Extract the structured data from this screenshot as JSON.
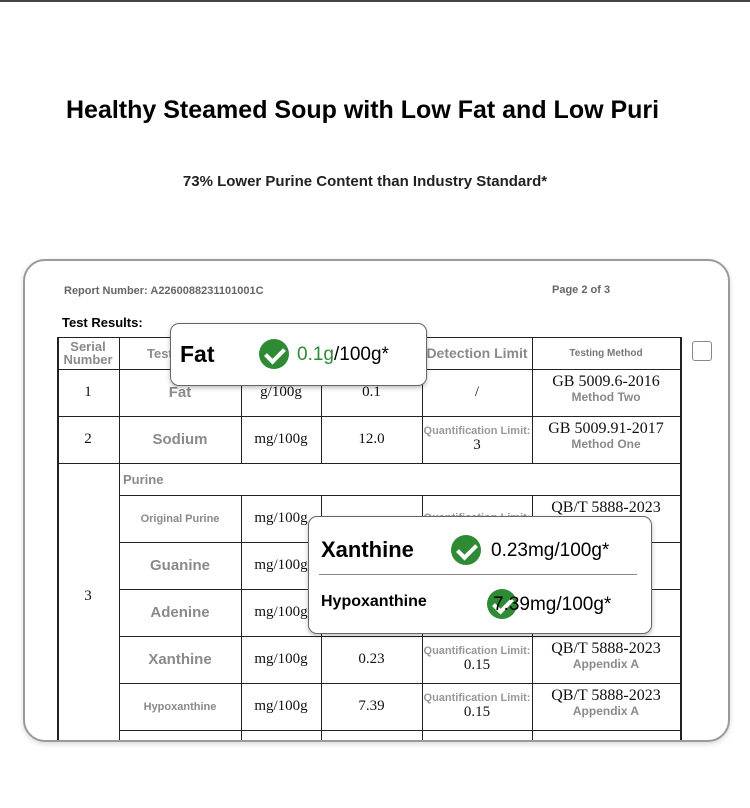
{
  "header": {
    "title": "Healthy Steamed Soup with Low Fat and Low Puri",
    "subtitle": "73% Lower Purine Content than Industry Standard*"
  },
  "report": {
    "number": "Report Number: A2260088231101001C",
    "page": "Page 2 of 3",
    "section": "Test Results:"
  },
  "table": {
    "headers": {
      "serial": "Serial Number",
      "item": "Test",
      "limit": "Detection Limit",
      "method": "Testing Method"
    },
    "rows": [
      {
        "serial": "1",
        "item": "Fat",
        "unit": "g/100g",
        "result": "0.1",
        "limit_value": "/",
        "method": "GB 5009.6-2016",
        "method_note": "Method Two"
      },
      {
        "serial": "2",
        "item": "Sodium",
        "unit": "mg/100g",
        "result": "12.0",
        "limit_label": "Quantification Limit:",
        "limit_value": "3",
        "method": "GB 5009.91-2017",
        "method_note": "Method One"
      }
    ],
    "group": {
      "serial": "3",
      "label": "Purine",
      "rows": [
        {
          "item": "Original Purine",
          "unit": "mg/100g",
          "limit_label": "Quantification Limit:",
          "method": "QB/T 5888-2023"
        },
        {
          "item": "Guanine",
          "unit": "mg/100g"
        },
        {
          "item": "Adenine",
          "unit": "mg/100g"
        },
        {
          "item": "Xanthine",
          "unit": "mg/100g",
          "result": "0.23",
          "limit_label": "Quantification Limit:",
          "limit_value": "0.15",
          "method": "QB/T 5888-2023",
          "method_note": "Appendix A"
        },
        {
          "item": "Hypoxanthine",
          "unit": "mg/100g",
          "result": "7.39",
          "limit_label": "Quantification Limit:",
          "limit_value": "0.15",
          "method": "QB/T 5888-2023",
          "method_note": "Appendix A"
        }
      ]
    }
  },
  "callouts": {
    "fat": {
      "label": "Fat",
      "value": "0.1g",
      "unit": "/100g*"
    },
    "purine": [
      {
        "label": "Xanthine",
        "value": "0.23mg/100g*"
      },
      {
        "label": "Hypoxanthine",
        "value": "7.39mg/100g*"
      }
    ]
  }
}
